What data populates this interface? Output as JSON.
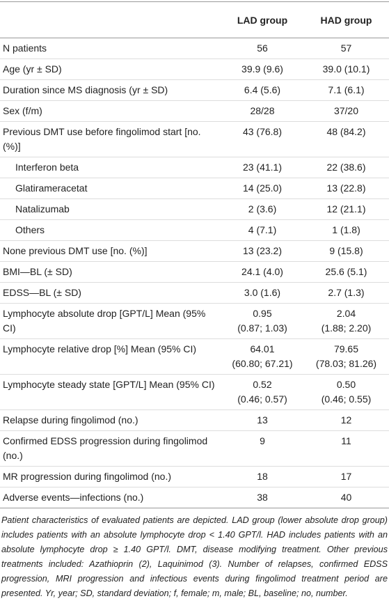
{
  "table": {
    "header": [
      "LAD group",
      "HAD group"
    ],
    "rows": [
      {
        "label": "N patients",
        "lad": "56",
        "had": "57"
      },
      {
        "label": "Age (yr ± SD)",
        "lad": "39.9 (9.6)",
        "had": "39.0 (10.1)"
      },
      {
        "label": "Duration since MS diagnosis (yr ± SD)",
        "lad": "6.4 (5.6)",
        "had": "7.1 (6.1)"
      },
      {
        "label": "Sex (f/m)",
        "lad": "28/28",
        "had": "37/20"
      },
      {
        "label": "Previous DMT use before fingolimod start [no. (%)]",
        "lad": "43 (76.8)",
        "had": "48 (84.2)"
      },
      {
        "label": "Interferon beta",
        "lad": "23 (41.1)",
        "had": "22 (38.6)",
        "indent": true
      },
      {
        "label": "Glatirameracetat",
        "lad": "14 (25.0)",
        "had": "13 (22.8)",
        "indent": true
      },
      {
        "label": "Natalizumab",
        "lad": "2 (3.6)",
        "had": "12 (21.1)",
        "indent": true
      },
      {
        "label": "Others",
        "lad": "4 (7.1)",
        "had": "1 (1.8)",
        "indent": true
      },
      {
        "label": "None previous DMT use [no. (%)]",
        "lad": "13 (23.2)",
        "had": "9 (15.8)"
      },
      {
        "label": "BMI—BL (± SD)",
        "lad": "24.1 (4.0)",
        "had": "25.6 (5.1)"
      },
      {
        "label": "EDSS—BL (± SD)",
        "lad": "3.0 (1.6)",
        "had": "2.7 (1.3)"
      },
      {
        "label": "Lymphocyte absolute drop [GPT/L] Mean (95% CI)",
        "lad": "0.95\n(0.87; 1.03)",
        "had": "2.04\n(1.88; 2.20)"
      },
      {
        "label": "Lymphocyte relative drop [%] Mean (95% CI)",
        "lad": "64.01\n(60.80; 67.21)",
        "had": "79.65\n(78.03; 81.26)"
      },
      {
        "label": "Lymphocyte steady state [GPT/L] Mean (95% CI)",
        "lad": "0.52\n(0.46; 0.57)",
        "had": "0.50\n(0.46; 0.55)"
      },
      {
        "label": "Relapse during fingolimod (no.)",
        "lad": "13",
        "had": "12"
      },
      {
        "label": "Confirmed EDSS progression during fingolimod (no.)",
        "lad": "9",
        "had": "11"
      },
      {
        "label": "MR progression during fingolimod (no.)",
        "lad": "18",
        "had": "17"
      },
      {
        "label": "Adverse events—infections (no.)",
        "lad": "38",
        "had": "40"
      }
    ],
    "note": "Patient characteristics of evaluated patients are depicted. LAD group (lower absolute drop group) includes patients with an absolute lymphocyte drop < 1.40 GPT/l. HAD includes patients with an absolute lymphocyte drop ≥ 1.40 GPT/l. DMT, disease modifying treatment. Other previous treatments included: Azathioprin (2), Laquinimod (3). Number of relapses, confirmed EDSS progression, MRI progression and infectious events during fingolimod treatment period are presented. Yr, year; SD, standard deviation; f, female; m, male; BL, baseline; no, number."
  }
}
